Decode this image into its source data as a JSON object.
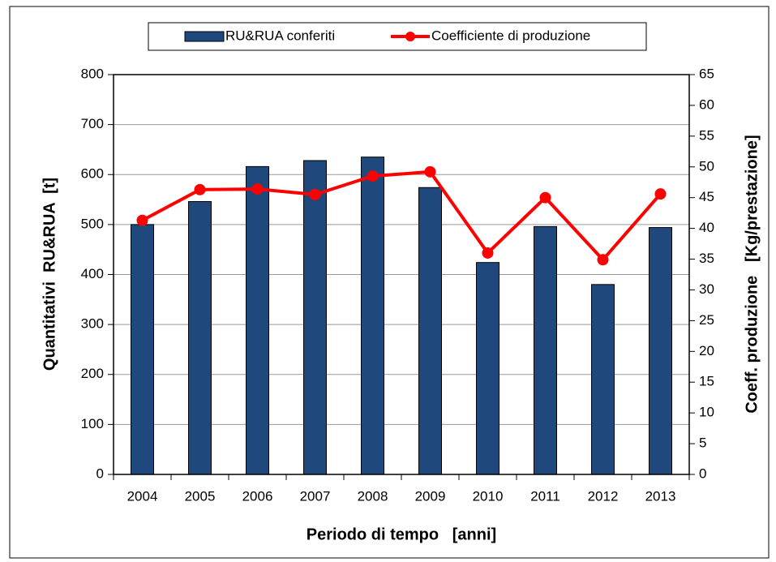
{
  "chart_data": {
    "type": "bar",
    "categories": [
      "2004",
      "2005",
      "2006",
      "2007",
      "2008",
      "2009",
      "2010",
      "2011",
      "2012",
      "2013"
    ],
    "series": [
      {
        "name": "RU&RUA conferiti",
        "type": "bar",
        "color": "#1f497d",
        "values": [
          500,
          546,
          616,
          628,
          635,
          574,
          424,
          496,
          380,
          494
        ]
      },
      {
        "name": "Coefficiente di produzione",
        "type": "line",
        "axis": "y2",
        "color": "#ff0000",
        "values": [
          41.3,
          46.3,
          46.4,
          45.5,
          48.5,
          49.2,
          36.0,
          45.0,
          34.9,
          45.6
        ]
      }
    ],
    "ylabel": "Quantitativi  RU&RUA  [t]",
    "y2label": "Coeff. produzione   [Kg/prestazione]",
    "xlabel": "Periodo di tempo   [anni]",
    "ylim": [
      0,
      800
    ],
    "yticks": [
      0,
      100,
      200,
      300,
      400,
      500,
      600,
      700,
      800
    ],
    "y2lim": [
      0,
      65
    ],
    "y2ticks": [
      0,
      5,
      10,
      15,
      20,
      25,
      30,
      35,
      40,
      45,
      50,
      55,
      60,
      65
    ],
    "grid": true,
    "legend": "top"
  }
}
